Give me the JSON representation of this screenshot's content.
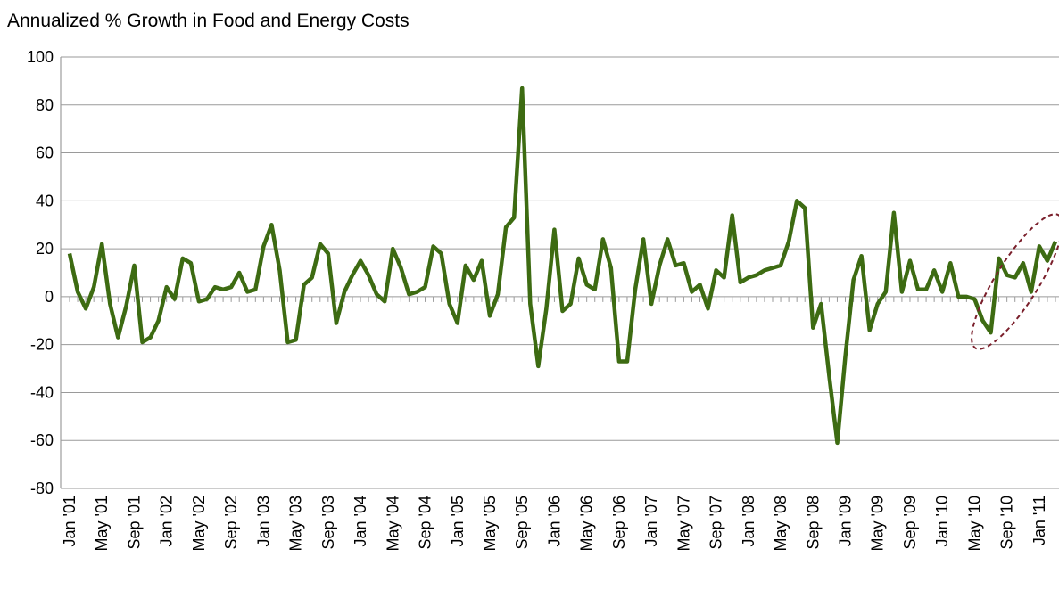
{
  "chart_data": {
    "type": "line",
    "title": "Annualized % Growth in Food and Energy Costs",
    "categories": [
      "Jan '01",
      null,
      null,
      null,
      "May '01",
      null,
      null,
      null,
      "Sep '01",
      null,
      null,
      null,
      "Jan '02",
      null,
      null,
      null,
      "May '02",
      null,
      null,
      null,
      "Sep '02",
      null,
      null,
      null,
      "Jan '03",
      null,
      null,
      null,
      "May '03",
      null,
      null,
      null,
      "Sep '03",
      null,
      null,
      null,
      "Jan '04",
      null,
      null,
      null,
      "May '04",
      null,
      null,
      null,
      "Sep '04",
      null,
      null,
      null,
      "Jan '05",
      null,
      null,
      null,
      "May '05",
      null,
      null,
      null,
      "Sep '05",
      null,
      null,
      null,
      "Jan '06",
      null,
      null,
      null,
      "May '06",
      null,
      null,
      null,
      "Sep '06",
      null,
      null,
      null,
      "Jan '07",
      null,
      null,
      null,
      "May '07",
      null,
      null,
      null,
      "Sep '07",
      null,
      null,
      null,
      "Jan '08",
      null,
      null,
      null,
      "May '08",
      null,
      null,
      null,
      "Sep '08",
      null,
      null,
      null,
      "Jan '09",
      null,
      null,
      null,
      "May '09",
      null,
      null,
      null,
      "Sep '09",
      null,
      null,
      null,
      "Jan '10",
      null,
      null,
      null,
      "May '10",
      null,
      null,
      null,
      "Sep '10",
      null,
      null,
      null,
      "Jan '11",
      null,
      null
    ],
    "values": [
      18,
      2,
      -5,
      4,
      22,
      -3,
      -17,
      -4,
      13,
      -19,
      -17,
      -10,
      4,
      -1,
      16,
      14,
      -2,
      -1,
      4,
      3,
      4,
      10,
      2,
      3,
      21,
      30,
      11,
      -19,
      -18,
      5,
      8,
      22,
      18,
      -11,
      2,
      9,
      15,
      9,
      1,
      -2,
      20,
      12,
      1,
      2,
      4,
      21,
      18,
      -3,
      -11,
      13,
      7,
      15,
      -8,
      1,
      29,
      33,
      87,
      -3,
      -29,
      -5,
      28,
      -6,
      -3,
      16,
      5,
      3,
      24,
      12,
      -27,
      -27,
      3,
      24,
      -3,
      13,
      24,
      13,
      14,
      2,
      5,
      -5,
      11,
      8,
      34,
      6,
      8,
      9,
      11,
      12,
      13,
      23,
      40,
      37,
      -13,
      -3,
      -33,
      -61,
      -25,
      7,
      17,
      -14,
      -3,
      2,
      35,
      2,
      15,
      3,
      3,
      11,
      2,
      14,
      0,
      0,
      -1,
      -10,
      -15,
      16,
      9,
      8,
      14,
      2,
      21,
      15,
      23
    ],
    "color": "#3d6b12",
    "ylim": [
      -80,
      100
    ],
    "yticks": [
      -80,
      -60,
      -40,
      -20,
      0,
      20,
      40,
      60,
      80,
      100
    ],
    "grid": true
  }
}
